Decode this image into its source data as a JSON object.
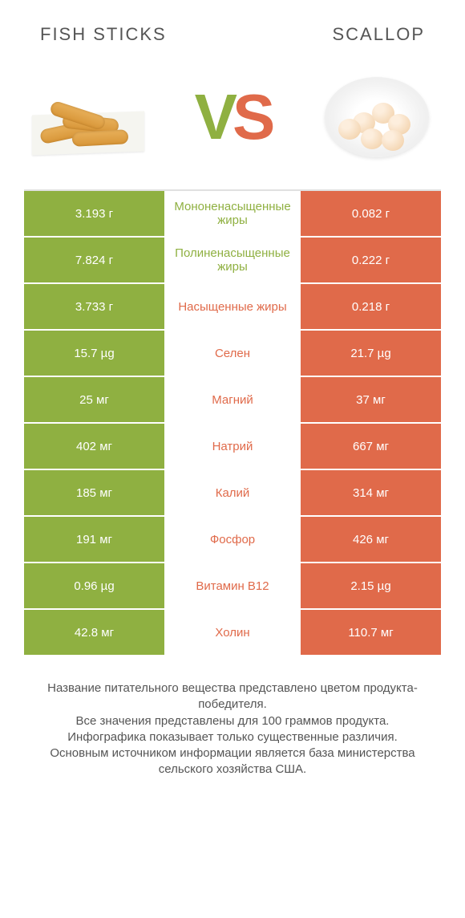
{
  "header": {
    "left_title": "FISH STICKS",
    "right_title": "SCALLOP"
  },
  "vs": {
    "v": "V",
    "s": "S"
  },
  "colors": {
    "left": "#8fb041",
    "right": "#e06a4a",
    "left_text": "#8fb041",
    "right_text": "#e06a4a"
  },
  "rows": [
    {
      "left": "3.193 г",
      "mid": "Мононенасыщенные жиры",
      "right": "0.082 г",
      "mid_color": "left"
    },
    {
      "left": "7.824 г",
      "mid": "Полиненасыщенные жиры",
      "right": "0.222 г",
      "mid_color": "left"
    },
    {
      "left": "3.733 г",
      "mid": "Насыщенные жиры",
      "right": "0.218 г",
      "mid_color": "right"
    },
    {
      "left": "15.7 µg",
      "mid": "Селен",
      "right": "21.7 µg",
      "mid_color": "right"
    },
    {
      "left": "25 мг",
      "mid": "Магний",
      "right": "37 мг",
      "mid_color": "right"
    },
    {
      "left": "402 мг",
      "mid": "Натрий",
      "right": "667 мг",
      "mid_color": "right"
    },
    {
      "left": "185 мг",
      "mid": "Калий",
      "right": "314 мг",
      "mid_color": "right"
    },
    {
      "left": "191 мг",
      "mid": "Фосфор",
      "right": "426 мг",
      "mid_color": "right"
    },
    {
      "left": "0.96 µg",
      "mid": "Витамин B12",
      "right": "2.15 µg",
      "mid_color": "right"
    },
    {
      "left": "42.8 мг",
      "mid": "Холин",
      "right": "110.7 мг",
      "mid_color": "right"
    }
  ],
  "footer": {
    "line1": "Название питательного вещества представлено цветом продукта-победителя.",
    "line2": "Все значения представлены для 100 граммов продукта.",
    "line3": "Инфографика показывает только существенные различия.",
    "line4": "Основным источником информации является база министерства сельского хозяйства США."
  }
}
